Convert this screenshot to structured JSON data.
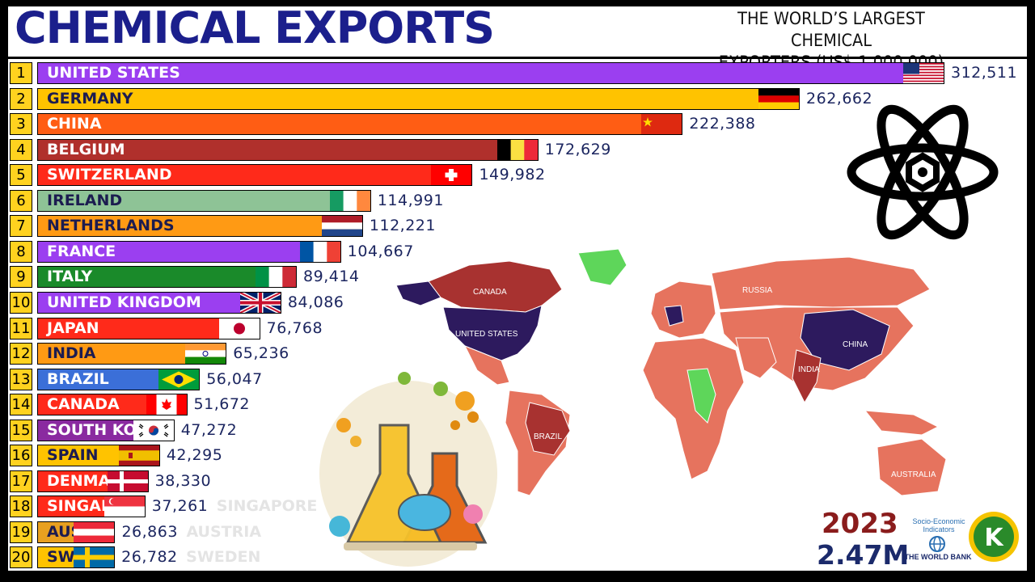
{
  "header": {
    "title": "CHEMICAL EXPORTS",
    "subtitle_line1": "THE WORLD’S LARGEST CHEMICAL",
    "subtitle_line2": "EXPORTERS (US$ 1,000,000)"
  },
  "footer": {
    "year": "2023",
    "total": "2.47M",
    "source_line1": "Socio-Economic",
    "source_line2": "Indicators",
    "source_name": "THE WORLD BANK",
    "channel_logo_letter": "K"
  },
  "map": {
    "labels": [
      "CANADA",
      "UNITED STATES",
      "RUSSIA",
      "CHINA",
      "INDIA",
      "BRAZIL",
      "AUSTRALIA"
    ]
  },
  "chart_data": {
    "type": "bar",
    "title": "CHEMICAL EXPORTS",
    "subtitle": "THE WORLD’S LARGEST CHEMICAL EXPORTERS (US$ 1,000,000)",
    "orientation": "horizontal",
    "ranks": [
      "1",
      "2",
      "3",
      "4",
      "5",
      "6",
      "7",
      "8",
      "9",
      "10",
      "11",
      "12",
      "13",
      "14",
      "15",
      "16",
      "17",
      "18",
      "19",
      "20"
    ],
    "categories": [
      "UNITED STATES",
      "GERMANY",
      "CHINA",
      "BELGIUM",
      "SWITZERLAND",
      "IRELAND",
      "NETHERLANDS",
      "FRANCE",
      "ITALY",
      "UNITED KINGDOM",
      "JAPAN",
      "INDIA",
      "BRAZIL",
      "CANADA",
      "SOUTH KOR",
      "SPAIN",
      "DENMAR",
      "SINGAP",
      "AUS",
      "SWE"
    ],
    "overflow_names": [
      "",
      "",
      "",
      "",
      "",
      "",
      "",
      "",
      "",
      "",
      "",
      "",
      "",
      "",
      "",
      "",
      "",
      "SINGAPORE",
      "AUSTRIA",
      "SWEDEN"
    ],
    "values": [
      312511,
      262662,
      222388,
      172629,
      149982,
      114991,
      112221,
      104667,
      89414,
      84086,
      76768,
      65236,
      56047,
      51672,
      47272,
      42295,
      38330,
      37261,
      26863,
      26782
    ],
    "value_labels": [
      "312,511",
      "262,662",
      "222,388",
      "172,629",
      "149,982",
      "114,991",
      "112,221",
      "104,667",
      "89,414",
      "84,086",
      "76,768",
      "65,236",
      "56,047",
      "51,672",
      "47,272",
      "42,295",
      "38,330",
      "37,261",
      "26,863",
      "26,782"
    ],
    "bar_colors": [
      "#9b3ff0",
      "#ffc300",
      "#ff5d14",
      "#b0302c",
      "#ff2a1a",
      "#8ec396",
      "#ff9a14",
      "#9b3ff0",
      "#1a8a2a",
      "#9b3ff0",
      "#ff2a1a",
      "#ff9a14",
      "#3b6fd8",
      "#ff2a1a",
      "#8a2aa0",
      "#ffc300",
      "#ff2a1a",
      "#ff2a1a",
      "#e8a020",
      "#ffc300"
    ],
    "label_colors": [
      "#fff",
      "#1c1c50",
      "#fff",
      "#fff",
      "#fff",
      "#1c1c50",
      "#1c1c50",
      "#fff",
      "#fff",
      "#fff",
      "#fff",
      "#1c1c50",
      "#fff",
      "#fff",
      "#fff",
      "#1c1c50",
      "#fff",
      "#fff",
      "#1c1c50",
      "#1c1c50"
    ],
    "flags": [
      "us-flag",
      "germany-flag",
      "china-flag",
      "belgium-flag",
      "switzerland-flag",
      "ireland-flag",
      "netherlands-flag",
      "france-flag",
      "italy-flag",
      "uk-flag",
      "japan-flag",
      "india-flag",
      "brazil-flag",
      "canada-flag",
      "south-korea-flag",
      "spain-flag",
      "denmark-flag",
      "singapore-flag",
      "austria-flag",
      "sweden-flag"
    ],
    "xlim": [
      0,
      312511
    ],
    "grid": false,
    "legend": "none"
  }
}
